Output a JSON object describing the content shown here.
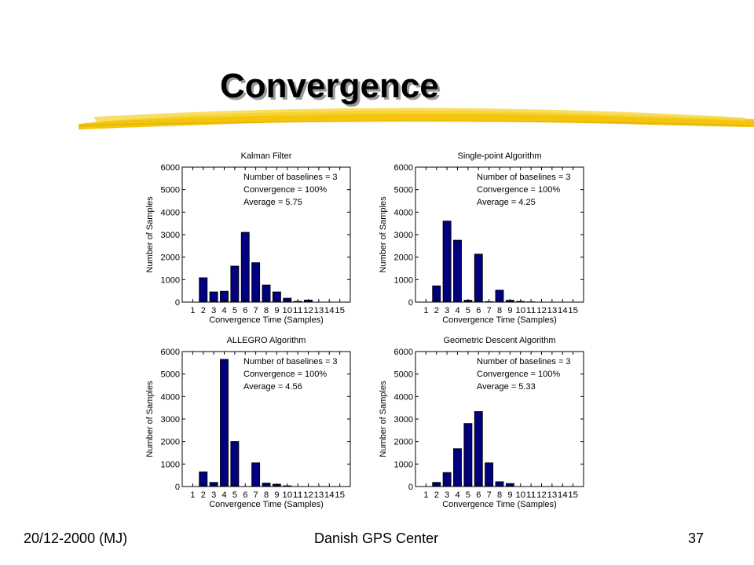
{
  "slide": {
    "title": "Convergence",
    "footer_left": "20/12-2000 (MJ)",
    "footer_center": "Danish GPS Center",
    "footer_right": "37",
    "accent_color": "#f2c200",
    "bar_color": "#000080"
  },
  "chart_data": [
    {
      "type": "bar",
      "title": "Kalman Filter",
      "xlabel": "Convergence Time (Samples)",
      "ylabel": "Number of Samples",
      "categories": [
        "1",
        "2",
        "3",
        "4",
        "5",
        "6",
        "7",
        "8",
        "9",
        "10",
        "11",
        "12",
        "13",
        "14",
        "15"
      ],
      "values": [
        0,
        1080,
        450,
        480,
        1600,
        3100,
        1750,
        760,
        450,
        170,
        30,
        90,
        0,
        0,
        0
      ],
      "ylim": [
        0,
        6000
      ],
      "yticks": [
        0,
        1000,
        2000,
        3000,
        4000,
        5000,
        6000
      ],
      "annotations": [
        "Number of baselines = 3",
        "Convergence = 100%",
        "Average = 5.75"
      ]
    },
    {
      "type": "bar",
      "title": "Single-point Algorithm",
      "xlabel": "Convergence Time (Samples)",
      "ylabel": "Number of Samples",
      "categories": [
        "1",
        "2",
        "3",
        "4",
        "5",
        "6",
        "7",
        "8",
        "9",
        "10",
        "11",
        "12",
        "13",
        "14",
        "15"
      ],
      "values": [
        0,
        720,
        3600,
        2750,
        80,
        2130,
        20,
        530,
        80,
        30,
        10,
        0,
        0,
        0,
        0
      ],
      "ylim": [
        0,
        6000
      ],
      "yticks": [
        0,
        1000,
        2000,
        3000,
        4000,
        5000,
        6000
      ],
      "annotations": [
        "Number of baselines = 3",
        "Convergence = 100%",
        "Average = 4.25"
      ]
    },
    {
      "type": "bar",
      "title": "ALLEGRO Algorithm",
      "xlabel": "Convergence Time (Samples)",
      "ylabel": "Number of Samples",
      "categories": [
        "1",
        "2",
        "3",
        "4",
        "5",
        "6",
        "7",
        "8",
        "9",
        "10",
        "11",
        "12",
        "13",
        "14",
        "15"
      ],
      "values": [
        0,
        650,
        180,
        5650,
        2000,
        0,
        1050,
        150,
        100,
        30,
        0,
        0,
        0,
        0,
        0
      ],
      "ylim": [
        0,
        6000
      ],
      "yticks": [
        0,
        1000,
        2000,
        3000,
        4000,
        5000,
        6000
      ],
      "annotations": [
        "Number of baselines = 3",
        "Convergence = 100%",
        "Average = 4.56"
      ]
    },
    {
      "type": "bar",
      "title": "Geometric Descent Algorithm",
      "xlabel": "Convergence Time (Samples)",
      "ylabel": "Number of Samples",
      "categories": [
        "1",
        "2",
        "3",
        "4",
        "5",
        "6",
        "7",
        "8",
        "9",
        "10",
        "11",
        "12",
        "13",
        "14",
        "15"
      ],
      "values": [
        0,
        180,
        620,
        1680,
        2800,
        3330,
        1050,
        210,
        130,
        0,
        0,
        0,
        0,
        0,
        0
      ],
      "ylim": [
        0,
        6000
      ],
      "yticks": [
        0,
        1000,
        2000,
        3000,
        4000,
        5000,
        6000
      ],
      "annotations": [
        "Number of baselines = 3",
        "Convergence = 100%",
        "Average = 5.33"
      ]
    }
  ]
}
